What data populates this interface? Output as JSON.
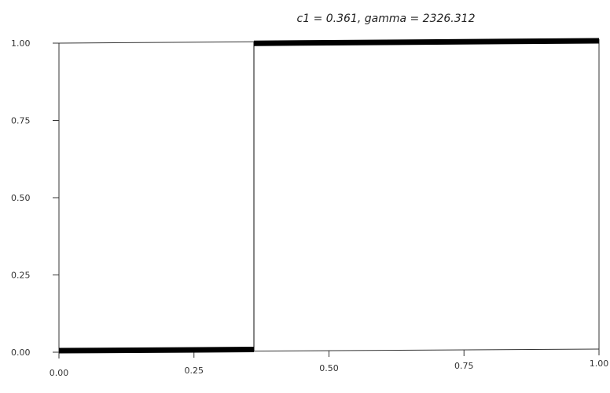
{
  "chart_data": {
    "type": "line",
    "title": "c1 = 0.361, gamma = 2326.312",
    "xlabel": "",
    "ylabel": "",
    "xlim": [
      0,
      1
    ],
    "ylim": [
      0,
      1
    ],
    "x_ticks": [
      "0.00",
      "0.25",
      "0.50",
      "0.75",
      "1.00"
    ],
    "y_ticks": [
      "0.00",
      "0.25",
      "0.50",
      "0.75",
      "1.00"
    ],
    "grid": false,
    "series": [
      {
        "values": [
          {
            "x": 0.0,
            "y": 0.0
          },
          {
            "x": 0.361,
            "y": 0.0
          },
          {
            "x": 0.361,
            "y": 1.0
          },
          {
            "x": 1.0,
            "y": 1.0
          }
        ],
        "color": "#333333"
      }
    ],
    "highlights": [
      {
        "x0": 0.0,
        "x1": 0.361,
        "y": 0.0,
        "color": "#000000"
      },
      {
        "x0": 0.361,
        "x1": 1.0,
        "y": 1.0,
        "color": "#000000"
      }
    ]
  }
}
